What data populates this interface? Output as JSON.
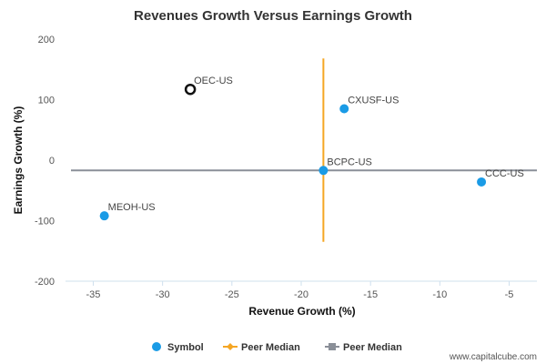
{
  "chart_data": {
    "type": "scatter",
    "title": "Revenues Growth Versus Earnings Growth",
    "xlabel": "Revenue Growth (%)",
    "ylabel": "Earnings Growth (%)",
    "xlim": [
      -37,
      -3
    ],
    "ylim": [
      -200,
      200
    ],
    "x_ticks": [
      -35,
      -30,
      -25,
      -20,
      -15,
      -10,
      -5
    ],
    "y_ticks": [
      200,
      100,
      0,
      -100,
      -200
    ],
    "grid": false,
    "legend_position": "bottom",
    "points": [
      {
        "label": "OEC-US",
        "x": -28.0,
        "y": 117,
        "style": "highlight"
      },
      {
        "label": "CXUSF-US",
        "x": -16.9,
        "y": 85,
        "style": "peer"
      },
      {
        "label": "BCPC-US",
        "x": -18.4,
        "y": -17,
        "style": "peer"
      },
      {
        "label": "CCC-US",
        "x": -7.0,
        "y": -36,
        "style": "peer"
      },
      {
        "label": "MEOH-US",
        "x": -34.2,
        "y": -92,
        "style": "peer"
      }
    ],
    "peer_median_revenue": -18.4,
    "peer_median_earnings": -17,
    "median_line_y_range": [
      -135,
      168
    ],
    "legend": [
      {
        "name": "Symbol",
        "marker": "circle",
        "color": "#1a9be6"
      },
      {
        "name": "Peer Median",
        "marker": "diamond",
        "color": "#f5a623"
      },
      {
        "name": "Peer Median",
        "marker": "square",
        "color": "#8a8f98"
      }
    ],
    "colors": {
      "symbol": "#1a9be6",
      "highlight_stroke": "#111111",
      "vertical_median": "#f5a623",
      "horizontal_median": "#8a8f98"
    }
  },
  "watermark": "www.capitalcube.com"
}
